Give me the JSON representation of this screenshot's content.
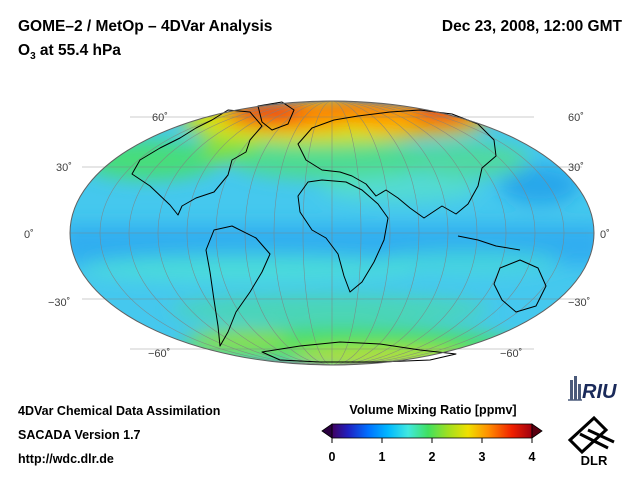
{
  "header": {
    "title": "GOME–2 / MetOp – 4DVar Analysis",
    "datetime": "Dec 23, 2008, 12:00 GMT",
    "species": "O",
    "species_subscript": "3",
    "level": " at 55.4 hPa"
  },
  "map": {
    "projection": "Mollweide",
    "lat_labels": {
      "lat60": "60˚",
      "lat30": "30˚",
      "lat0": "0˚",
      "latm30": "−30˚",
      "latm60": "−60˚"
    }
  },
  "colorbar": {
    "title": "Volume Mixing Ratio [ppmv]",
    "ticks": [
      "0",
      "1",
      "2",
      "3",
      "4"
    ],
    "min": 0,
    "max": 4,
    "colors": [
      "#400060",
      "#2020c0",
      "#0070ff",
      "#00b8ff",
      "#40e8e0",
      "#40e060",
      "#a0e020",
      "#f0e000",
      "#ff9000",
      "#f02000",
      "#a00010"
    ]
  },
  "footer": {
    "line1": "4DVar Chemical Data Assimilation",
    "line2": "SACADA Version 1.7",
    "line3": "http://wdc.dlr.de"
  },
  "logos": {
    "riu": "RIU",
    "dlr": "DLR"
  }
}
